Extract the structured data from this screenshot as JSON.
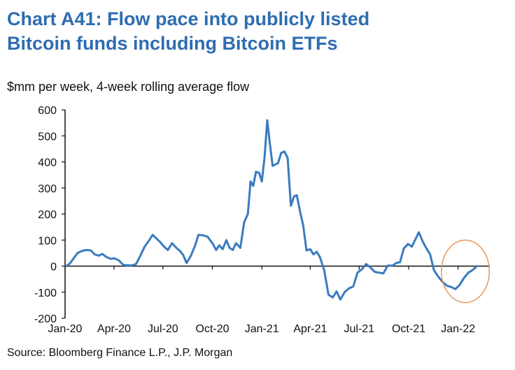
{
  "title_line1": "Chart A41: Flow pace into publicly listed",
  "title_line2": "Bitcoin funds including Bitcoin ETFs",
  "subtitle": "$mm per week, 4-week rolling average flow",
  "source": "Source: Bloomberg Finance L.P., J.P. Morgan",
  "colors": {
    "title": "#2e6db1",
    "line": "#3a7bbf",
    "highlight": "#e8965a",
    "axis": "#111111"
  },
  "chart_data": {
    "type": "line",
    "ylim": [
      -200,
      600
    ],
    "yticks": [
      600,
      500,
      400,
      300,
      200,
      100,
      0,
      -100,
      -200
    ],
    "xlim": [
      "2020-01-01",
      "2022-03-01"
    ],
    "xticks": [
      {
        "date": "2020-01-01",
        "label": "Jan-20"
      },
      {
        "date": "2020-04-01",
        "label": "Apr-20"
      },
      {
        "date": "2020-07-01",
        "label": "Jul-20"
      },
      {
        "date": "2020-10-01",
        "label": "Oct-20"
      },
      {
        "date": "2021-01-01",
        "label": "Jan-21"
      },
      {
        "date": "2021-04-01",
        "label": "Apr-21"
      },
      {
        "date": "2021-07-01",
        "label": "Jul-21"
      },
      {
        "date": "2021-10-01",
        "label": "Oct-21"
      },
      {
        "date": "2022-01-01",
        "label": "Jan-22"
      }
    ],
    "grid": false,
    "highlight": {
      "shape": "ellipse",
      "x_from": "2021-12-01",
      "x_to": "2022-02-28",
      "y_from": -140,
      "y_to": 100
    },
    "series": [
      {
        "points": [
          [
            "2020-01-03",
            0
          ],
          [
            "2020-01-10",
            10
          ],
          [
            "2020-01-17",
            30
          ],
          [
            "2020-01-24",
            50
          ],
          [
            "2020-02-01",
            58
          ],
          [
            "2020-02-10",
            62
          ],
          [
            "2020-02-18",
            60
          ],
          [
            "2020-02-25",
            45
          ],
          [
            "2020-03-04",
            40
          ],
          [
            "2020-03-10",
            47
          ],
          [
            "2020-03-18",
            35
          ],
          [
            "2020-03-26",
            28
          ],
          [
            "2020-04-02",
            30
          ],
          [
            "2020-04-10",
            22
          ],
          [
            "2020-04-18",
            5
          ],
          [
            "2020-04-26",
            3
          ],
          [
            "2020-05-04",
            3
          ],
          [
            "2020-05-12",
            8
          ],
          [
            "2020-05-20",
            40
          ],
          [
            "2020-05-28",
            75
          ],
          [
            "2020-06-05",
            98
          ],
          [
            "2020-06-12",
            120
          ],
          [
            "2020-06-18",
            108
          ],
          [
            "2020-06-26",
            92
          ],
          [
            "2020-07-03",
            75
          ],
          [
            "2020-07-10",
            62
          ],
          [
            "2020-07-18",
            88
          ],
          [
            "2020-07-26",
            70
          ],
          [
            "2020-08-02",
            58
          ],
          [
            "2020-08-08",
            42
          ],
          [
            "2020-08-14",
            12
          ],
          [
            "2020-08-22",
            40
          ],
          [
            "2020-08-30",
            80
          ],
          [
            "2020-09-05",
            120
          ],
          [
            "2020-09-14",
            118
          ],
          [
            "2020-09-22",
            113
          ],
          [
            "2020-10-02",
            85
          ],
          [
            "2020-10-08",
            62
          ],
          [
            "2020-10-14",
            80
          ],
          [
            "2020-10-20",
            65
          ],
          [
            "2020-10-27",
            100
          ],
          [
            "2020-11-02",
            70
          ],
          [
            "2020-11-08",
            62
          ],
          [
            "2020-11-14",
            88
          ],
          [
            "2020-11-22",
            70
          ],
          [
            "2020-11-29",
            168
          ],
          [
            "2020-12-06",
            200
          ],
          [
            "2020-12-11",
            325
          ],
          [
            "2020-12-16",
            308
          ],
          [
            "2020-12-21",
            362
          ],
          [
            "2020-12-27",
            358
          ],
          [
            "2021-01-01",
            325
          ],
          [
            "2021-01-06",
            418
          ],
          [
            "2021-01-11",
            560
          ],
          [
            "2021-01-16",
            470
          ],
          [
            "2021-01-21",
            385
          ],
          [
            "2021-01-26",
            390
          ],
          [
            "2021-01-31",
            395
          ],
          [
            "2021-02-06",
            435
          ],
          [
            "2021-02-12",
            440
          ],
          [
            "2021-02-18",
            415
          ],
          [
            "2021-02-24",
            232
          ],
          [
            "2021-03-02",
            268
          ],
          [
            "2021-03-07",
            272
          ],
          [
            "2021-03-13",
            210
          ],
          [
            "2021-03-19",
            155
          ],
          [
            "2021-03-25",
            60
          ],
          [
            "2021-04-01",
            65
          ],
          [
            "2021-04-07",
            45
          ],
          [
            "2021-04-13",
            55
          ],
          [
            "2021-04-19",
            35
          ],
          [
            "2021-04-27",
            -15
          ],
          [
            "2021-05-05",
            -110
          ],
          [
            "2021-05-13",
            -120
          ],
          [
            "2021-05-20",
            -97
          ],
          [
            "2021-05-27",
            -128
          ],
          [
            "2021-06-04",
            -100
          ],
          [
            "2021-06-12",
            -85
          ],
          [
            "2021-06-20",
            -78
          ],
          [
            "2021-06-28",
            -25
          ],
          [
            "2021-07-06",
            -12
          ],
          [
            "2021-07-14",
            8
          ],
          [
            "2021-07-22",
            -5
          ],
          [
            "2021-07-30",
            -22
          ],
          [
            "2021-08-07",
            -25
          ],
          [
            "2021-08-15",
            -28
          ],
          [
            "2021-08-23",
            2
          ],
          [
            "2021-09-01",
            2
          ],
          [
            "2021-09-08",
            12
          ],
          [
            "2021-09-15",
            15
          ],
          [
            "2021-09-22",
            68
          ],
          [
            "2021-09-30",
            85
          ],
          [
            "2021-10-07",
            75
          ],
          [
            "2021-10-14",
            105
          ],
          [
            "2021-10-20",
            130
          ],
          [
            "2021-10-27",
            95
          ],
          [
            "2021-11-04",
            65
          ],
          [
            "2021-11-10",
            45
          ],
          [
            "2021-11-17",
            -15
          ],
          [
            "2021-11-25",
            -40
          ],
          [
            "2021-12-03",
            -60
          ],
          [
            "2021-12-11",
            -75
          ],
          [
            "2021-12-19",
            -80
          ],
          [
            "2021-12-27",
            -88
          ],
          [
            "2022-01-04",
            -72
          ],
          [
            "2022-01-12",
            -45
          ],
          [
            "2022-01-20",
            -25
          ],
          [
            "2022-01-28",
            -15
          ],
          [
            "2022-02-05",
            0
          ]
        ]
      }
    ]
  }
}
